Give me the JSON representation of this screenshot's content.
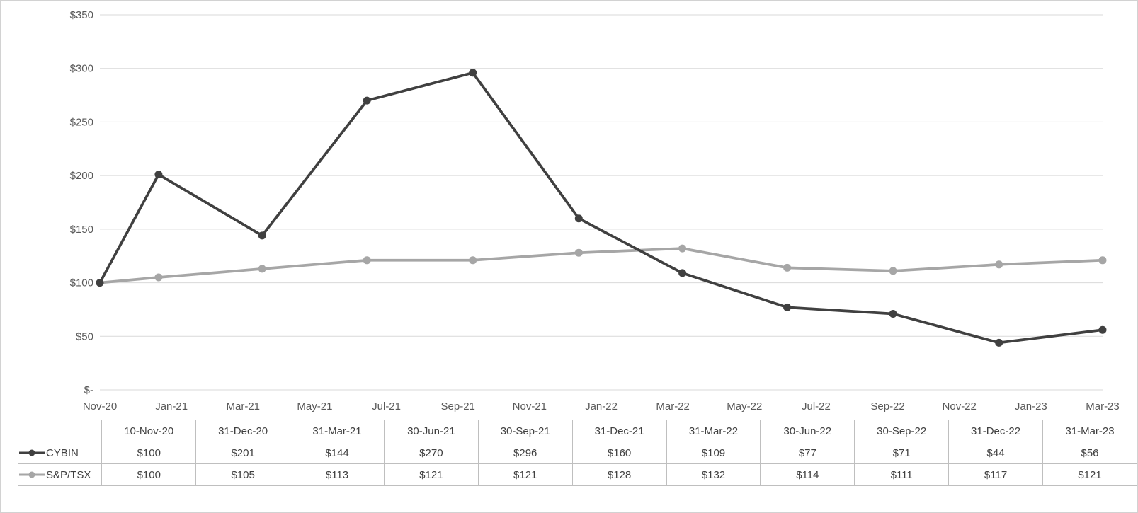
{
  "chart_data": {
    "type": "line",
    "title": "",
    "xlabel": "",
    "ylabel": "",
    "grid": true,
    "legend_position": "table-left",
    "y_axis": {
      "min": 0,
      "max": 350,
      "step": 50,
      "tick_labels": [
        "$350",
        "$300",
        "$250",
        "$200",
        "$150",
        "$100",
        "$50",
        "$-"
      ]
    },
    "x_axis": {
      "tick_labels": [
        "Nov-20",
        "Jan-21",
        "Mar-21",
        "May-21",
        "Jul-21",
        "Sep-21",
        "Nov-21",
        "Jan-22",
        "Mar-22",
        "May-22",
        "Jul-22",
        "Sep-22",
        "Nov-22",
        "Jan-23",
        "Mar-23"
      ]
    },
    "categories": [
      "10-Nov-20",
      "31-Dec-20",
      "31-Mar-21",
      "30-Jun-21",
      "30-Sep-21",
      "31-Dec-21",
      "31-Mar-22",
      "30-Jun-22",
      "30-Sep-22",
      "31-Dec-22",
      "31-Mar-23"
    ],
    "x_days": [
      0,
      51,
      141,
      232,
      324,
      416,
      506,
      597,
      689,
      781,
      871
    ],
    "series": [
      {
        "name": "CYBIN",
        "color": "#404040",
        "values": [
          100,
          201,
          144,
          270,
          296,
          160,
          109,
          77,
          71,
          44,
          56
        ]
      },
      {
        "name": "S&P/TSX",
        "color": "#a6a6a6",
        "values": [
          100,
          105,
          113,
          121,
          121,
          128,
          132,
          114,
          111,
          117,
          121
        ]
      }
    ]
  },
  "table": {
    "header": [
      "10-Nov-20",
      "31-Dec-20",
      "31-Mar-21",
      "30-Jun-21",
      "30-Sep-21",
      "31-Dec-21",
      "31-Mar-22",
      "30-Jun-22",
      "30-Sep-22",
      "31-Dec-22",
      "31-Mar-23"
    ],
    "rows": [
      {
        "label": "CYBIN",
        "marker_color": "#404040",
        "values": [
          "$100",
          "$201",
          "$144",
          "$270",
          "$296",
          "$160",
          "$109",
          "$77",
          "$71",
          "$44",
          "$56"
        ]
      },
      {
        "label": "S&P/TSX",
        "marker_color": "#a6a6a6",
        "values": [
          "$100",
          "$105",
          "$113",
          "$121",
          "$121",
          "$128",
          "$132",
          "$114",
          "$111",
          "$117",
          "$121"
        ]
      }
    ]
  },
  "colors": {
    "gridline": "#d9d9d9",
    "axis_text": "#595959",
    "table_border": "#bfbfbf",
    "table_text": "#404040",
    "frame_border": "#d2d2d2",
    "background": "#ffffff"
  }
}
